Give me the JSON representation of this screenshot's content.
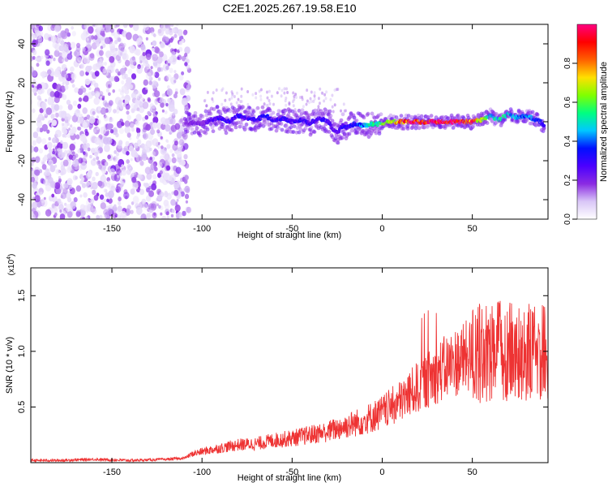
{
  "title": "C2E1.2025.267.19.58.E10",
  "chart_data": [
    {
      "type": "heatmap",
      "xlabel": "Height of straight line (km)",
      "ylabel": "Frequency (Hz)",
      "xlim": [
        -195,
        92
      ],
      "ylim": [
        -50,
        50
      ],
      "xticks": [
        -150,
        -100,
        -50,
        0,
        50
      ],
      "yticks": [
        -40,
        -20,
        0,
        20,
        40
      ],
      "colorbar": {
        "label": "Normalized spectral amplitude",
        "range": [
          0,
          1
        ],
        "ticks": [
          "0.0",
          "0.2",
          "0.4",
          "0.6",
          "0.8"
        ],
        "colors": [
          "#ffffff",
          "#d9c6f7",
          "#8a2be2",
          "#4b00ff",
          "#0010ff",
          "#00c8ff",
          "#00ff80",
          "#80ff00",
          "#ffe000",
          "#ff6000",
          "#ff0000",
          "#ff0080"
        ]
      },
      "trace": {
        "x": [
          -110,
          -105,
          -100,
          -95,
          -90,
          -85,
          -80,
          -75,
          -70,
          -65,
          -60,
          -55,
          -50,
          -45,
          -40,
          -35,
          -30,
          -27,
          -25,
          -22,
          -20,
          -15,
          -10,
          -5,
          0,
          5,
          10,
          20,
          30,
          40,
          50,
          55,
          60,
          65,
          70,
          75,
          80,
          85,
          88,
          90
        ],
        "y": [
          -2,
          0,
          -1,
          1,
          2,
          0,
          3,
          2,
          1,
          3,
          1,
          2,
          0,
          1,
          -1,
          2,
          0,
          -4,
          -6,
          -2,
          -3,
          -1,
          -2,
          -1,
          -1,
          0,
          0,
          0,
          0,
          0,
          0,
          1,
          3,
          1,
          4,
          2,
          3,
          1,
          0,
          -3
        ],
        "amplitude": [
          0.15,
          0.2,
          0.2,
          0.25,
          0.3,
          0.3,
          0.3,
          0.3,
          0.3,
          0.35,
          0.3,
          0.3,
          0.3,
          0.3,
          0.3,
          0.3,
          0.3,
          0.25,
          0.25,
          0.3,
          0.3,
          0.35,
          0.45,
          0.55,
          0.6,
          0.7,
          0.85,
          0.95,
          1.0,
          1.0,
          0.9,
          0.7,
          0.5,
          0.55,
          0.5,
          0.45,
          0.45,
          0.4,
          0.35,
          0.3
        ]
      },
      "noise_region": {
        "x_start": -195,
        "x_end": -107
      }
    },
    {
      "type": "line",
      "xlabel": "Height of straight line (km)",
      "ylabel": "SNR (10 * v/v)",
      "y_multiplier": "(x10^4)",
      "xlim": [
        -195,
        92
      ],
      "ylim": [
        0,
        1.75
      ],
      "xticks": [
        -150,
        -100,
        -50,
        0,
        50
      ],
      "yticks": [
        "0.5",
        "1.0",
        "1.5"
      ],
      "series": [
        {
          "color": "#ee3333",
          "x": [
            -195,
            -180,
            -160,
            -140,
            -120,
            -110,
            -105,
            -100,
            -90,
            -80,
            -70,
            -60,
            -50,
            -40,
            -30,
            -20,
            -10,
            0,
            10,
            20,
            30,
            40,
            50,
            55,
            60,
            65,
            70,
            75,
            80,
            85,
            92
          ],
          "y": [
            0.02,
            0.02,
            0.03,
            0.02,
            0.03,
            0.04,
            0.08,
            0.1,
            0.13,
            0.16,
            0.17,
            0.2,
            0.22,
            0.25,
            0.28,
            0.33,
            0.38,
            0.45,
            0.55,
            0.68,
            0.8,
            0.9,
            0.97,
            0.98,
            1.0,
            1.02,
            1.0,
            0.98,
            0.99,
            0.98,
            1.0
          ]
        }
      ]
    }
  ]
}
